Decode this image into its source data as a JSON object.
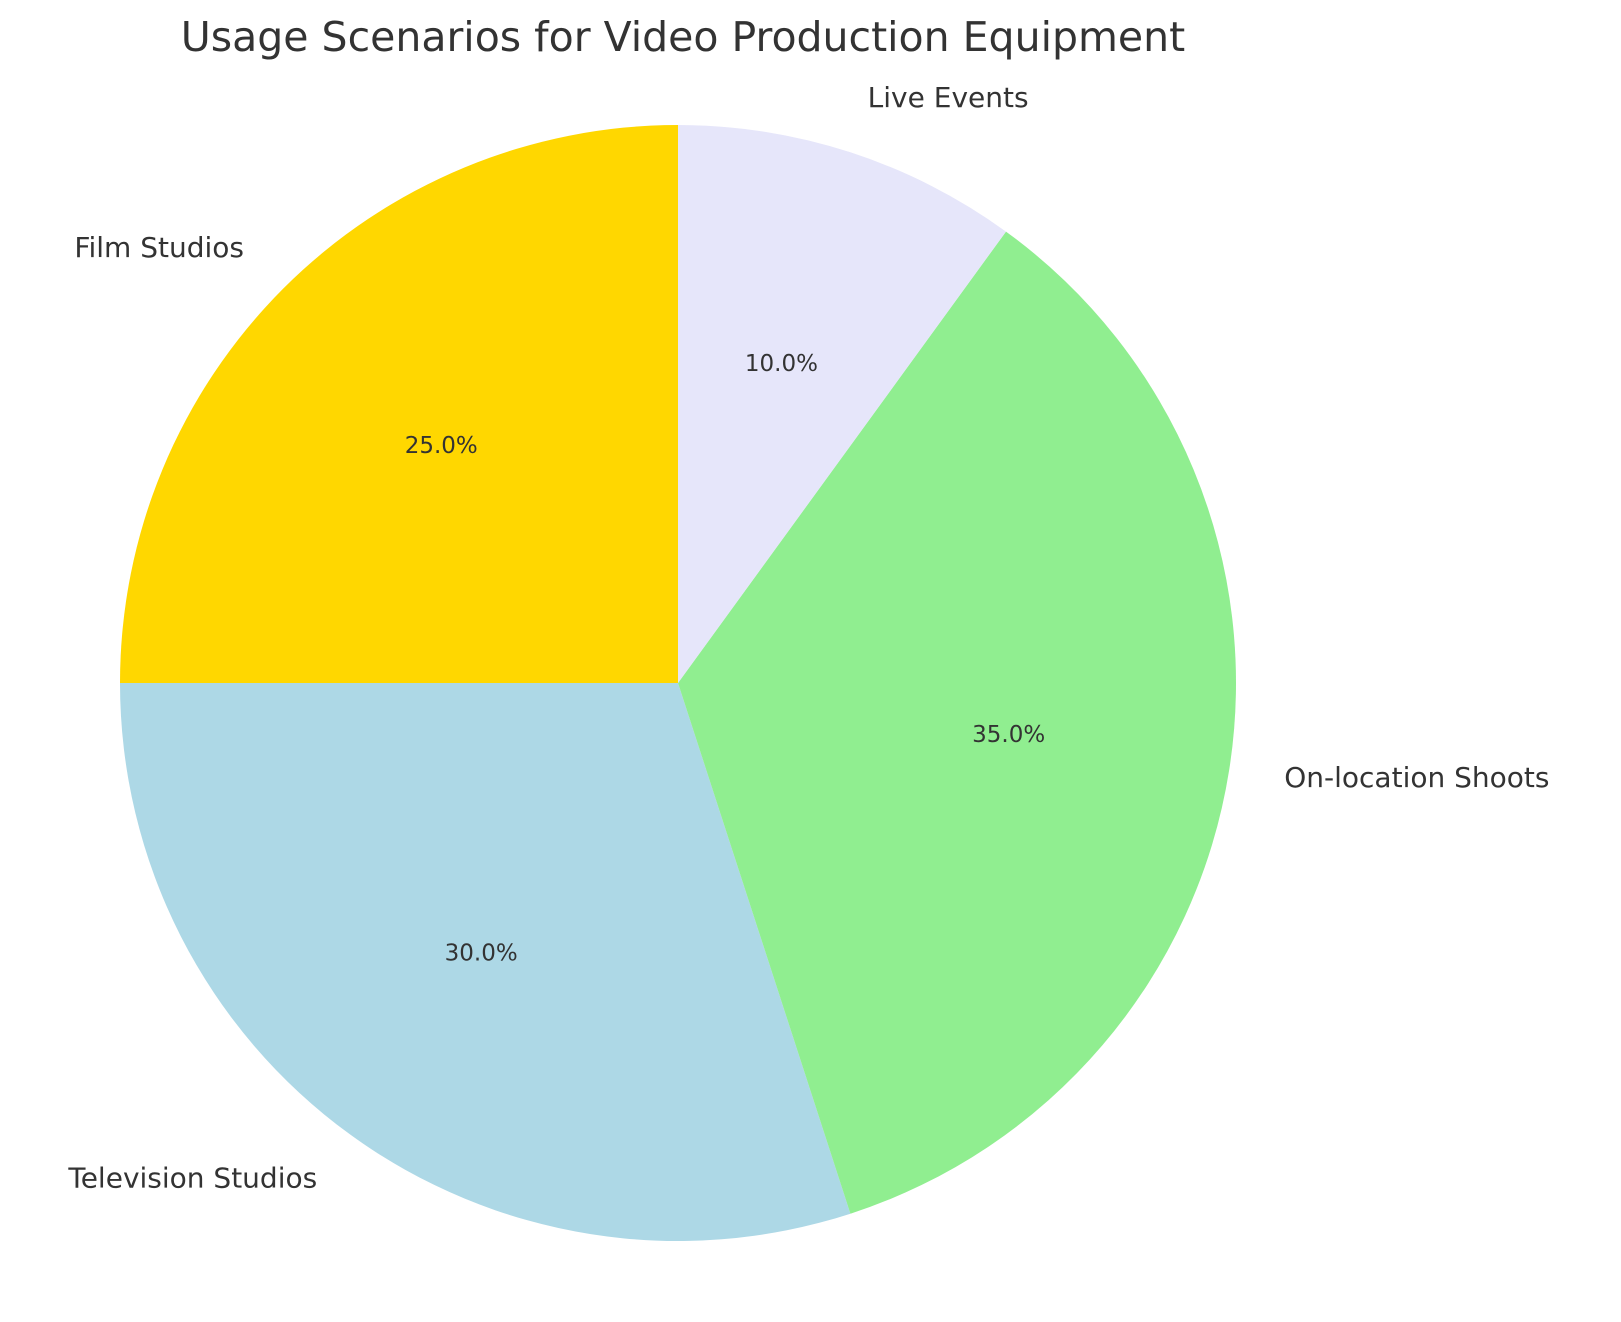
{
  "chart_data": {
    "type": "pie",
    "title": "Usage Scenarios for Video Production Equipment",
    "categories": [
      "Film Studios",
      "Television Studios",
      "On-location Shoots",
      "Live Events"
    ],
    "values": [
      25,
      30,
      35,
      10
    ],
    "value_labels": [
      "25.0%",
      "30.0%",
      "35.0%",
      "10.0%"
    ],
    "colors": [
      "#ffd700",
      "#add8e6",
      "#90ee90",
      "#e6e6fa"
    ]
  }
}
